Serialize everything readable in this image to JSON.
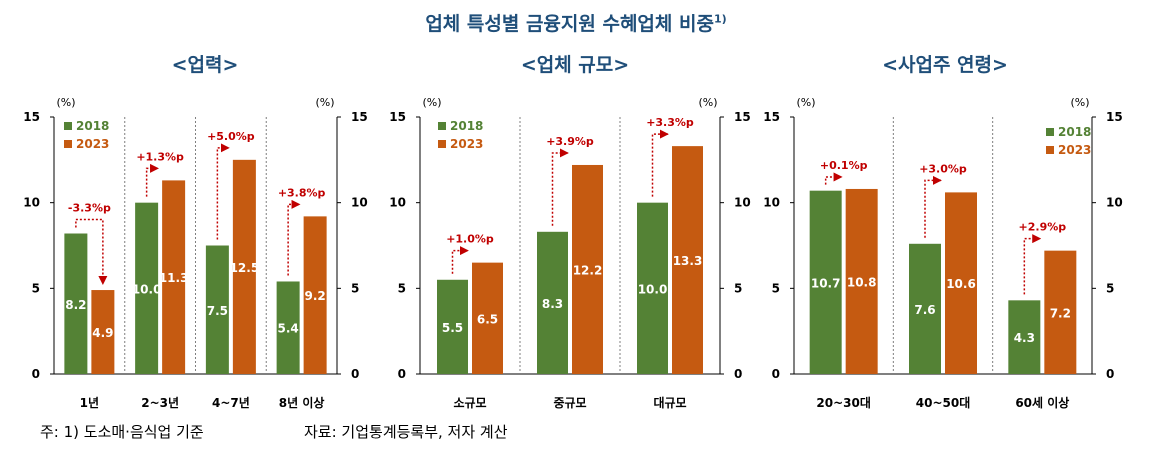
{
  "title": "업체 특성별 금융지원 수혜업체 비중",
  "title_footnote_mark": "1)",
  "footnote": "주: 1) 도소매·음식업 기준",
  "source": "자료: 기업통계등록부, 저자 계산",
  "colors": {
    "series_2018": "#548235",
    "series_2023": "#c55a11",
    "title": "#1f4e79",
    "change_label": "#c00000"
  },
  "chart_data": [
    {
      "type": "bar",
      "title": "<업력>",
      "unit_left": "(%)",
      "unit_right": "(%)",
      "ylim": [
        0,
        15
      ],
      "yticks": [
        0,
        5,
        10,
        15
      ],
      "categories": [
        "1년",
        "2~3년",
        "4~7년",
        "8년 이상"
      ],
      "series": [
        {
          "name": "2018",
          "values": [
            8.2,
            10.0,
            7.5,
            5.4
          ],
          "labels": [
            "8.2",
            "10.0",
            "7.5",
            "5.4"
          ]
        },
        {
          "name": "2023",
          "values": [
            4.9,
            11.3,
            12.5,
            9.2
          ],
          "labels": [
            "4.9",
            "11.3",
            "12.5",
            "9.2"
          ]
        }
      ],
      "change_labels": [
        "-3.3%p",
        "+1.3%p",
        "+5.0%p",
        "+3.8%p"
      ],
      "legend_position": "top-left"
    },
    {
      "type": "bar",
      "title": "<업체 규모>",
      "unit_left": "(%)",
      "unit_right": "(%)",
      "ylim": [
        0,
        15
      ],
      "yticks": [
        0,
        5,
        10,
        15
      ],
      "categories": [
        "소규모",
        "중규모",
        "대규모"
      ],
      "series": [
        {
          "name": "2018",
          "values": [
            5.5,
            8.3,
            10.0
          ],
          "labels": [
            "5.5",
            "8.3",
            "10.0"
          ]
        },
        {
          "name": "2023",
          "values": [
            6.5,
            12.2,
            13.3
          ],
          "labels": [
            "6.5",
            "12.2",
            "13.3"
          ]
        }
      ],
      "change_labels": [
        "+1.0%p",
        "+3.9%p",
        "+3.3%p"
      ],
      "legend_position": "top-left"
    },
    {
      "type": "bar",
      "title": "<사업주 연령>",
      "unit_left": "(%)",
      "unit_right": "(%)",
      "ylim": [
        0,
        15
      ],
      "yticks": [
        0,
        5,
        10,
        15
      ],
      "categories": [
        "20~30대",
        "40~50대",
        "60세 이상"
      ],
      "series": [
        {
          "name": "2018",
          "values": [
            10.7,
            7.6,
            4.3
          ],
          "labels": [
            "10.7",
            "7.6",
            "4.3"
          ]
        },
        {
          "name": "2023",
          "values": [
            10.8,
            10.6,
            7.2
          ],
          "labels": [
            "10.8",
            "10.6",
            "7.2"
          ]
        }
      ],
      "change_labels": [
        "+0.1%p",
        "+3.0%p",
        "+2.9%p"
      ],
      "legend_position": "top-right"
    }
  ]
}
